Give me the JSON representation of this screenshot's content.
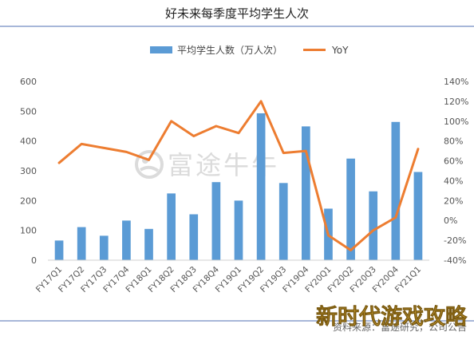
{
  "chart_data": {
    "type": "bar+line",
    "title": "好未来每季度平均学生人次",
    "categories": [
      "FY17Q1",
      "FY17Q2",
      "FY17Q3",
      "FY17Q4",
      "FY18Q1",
      "FY18Q2",
      "FY18Q3",
      "FY18Q4",
      "FY19Q1",
      "FY19Q2",
      "FY19Q3",
      "FY19Q4",
      "FY20Q1",
      "FY20Q2",
      "FY20Q3",
      "FY20Q4",
      "FY21Q1"
    ],
    "series": [
      {
        "name": "平均学生人数（万人次）",
        "kind": "bar",
        "axis": "left",
        "color": "#5b9bd5",
        "values": [
          66,
          111,
          82,
          133,
          105,
          224,
          154,
          262,
          200,
          493,
          259,
          449,
          173,
          341,
          231,
          464,
          296
        ]
      },
      {
        "name": "YoY",
        "kind": "line",
        "axis": "right",
        "unit": "%",
        "color": "#ed7d31",
        "values": [
          58,
          77,
          73,
          69,
          61,
          100,
          85,
          95,
          88,
          120,
          68,
          70,
          -15,
          -30,
          -10,
          3,
          72
        ]
      }
    ],
    "y_left": {
      "lim": [
        0,
        600
      ],
      "ticks": [
        "0",
        "100",
        "200",
        "300",
        "400",
        "500",
        "600"
      ]
    },
    "y_right": {
      "lim": [
        -40,
        140
      ],
      "ticks": [
        "-40%",
        "-20%",
        "0%",
        "20%",
        "40%",
        "60%",
        "80%",
        "100%",
        "120%",
        "140%"
      ]
    },
    "legend_position": "top-center",
    "grid": false
  },
  "watermark": {
    "text": "富途牛牛",
    "icon": "futu-logo-icon"
  },
  "footer": {
    "source": "资料来源：富途研究，公司公告",
    "overlay": "新时代游戏攻略"
  }
}
